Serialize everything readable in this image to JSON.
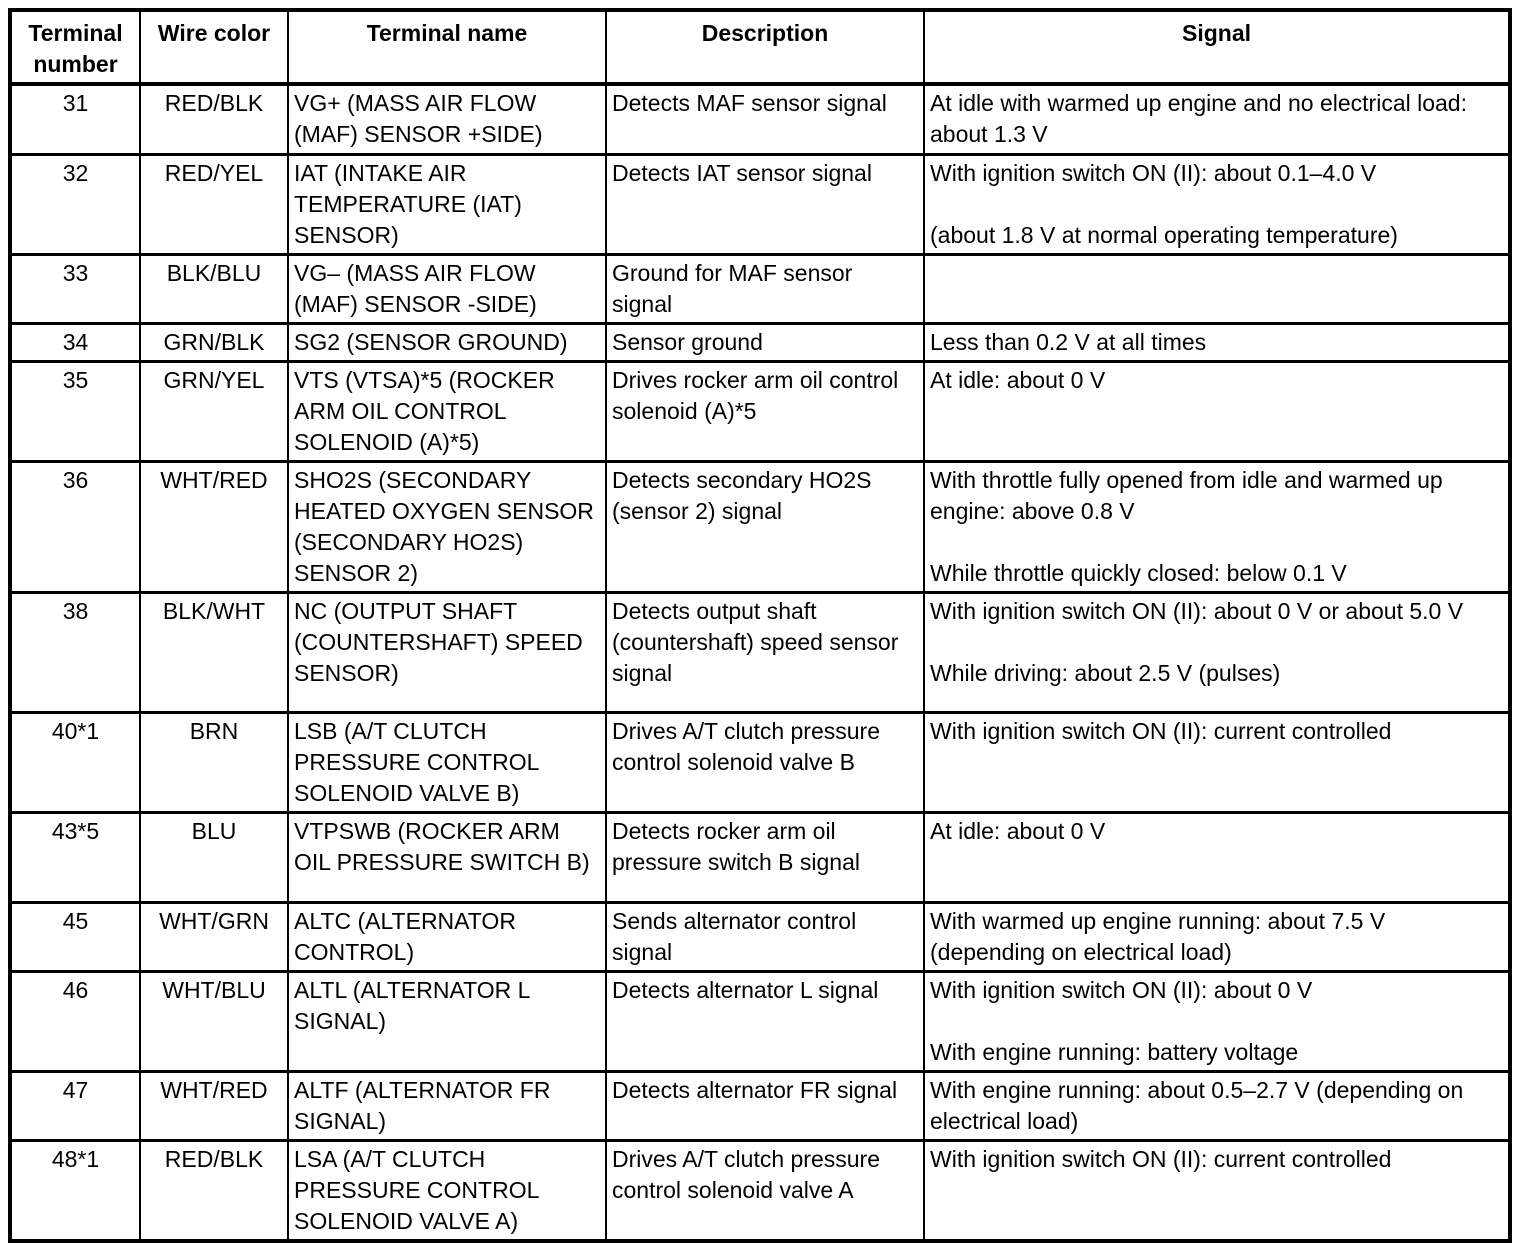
{
  "table": {
    "headers": [
      "Terminal number",
      "Wire color",
      "Terminal name",
      "Description",
      "Signal"
    ],
    "rows": [
      {
        "terminal": "31",
        "wire_color": "RED/BLK",
        "terminal_name": "VG+ (MASS AIR FLOW (MAF) SENSOR +SIDE)",
        "description": "Detects MAF sensor signal",
        "signal": [
          "At idle with warmed up engine and no electrical load: about 1.3 V"
        ]
      },
      {
        "terminal": "32",
        "wire_color": "RED/YEL",
        "terminal_name": "IAT (INTAKE AIR TEMPERATURE (IAT) SENSOR)",
        "description": "Detects IAT sensor signal",
        "signal": [
          "With ignition switch ON (II): about 0.1–4.0 V",
          "(about 1.8 V at normal operating temperature)"
        ]
      },
      {
        "terminal": "33",
        "wire_color": "BLK/BLU",
        "terminal_name": "VG– (MASS AIR FLOW (MAF) SENSOR -SIDE)",
        "description": "Ground for MAF sensor signal",
        "signal": []
      },
      {
        "terminal": "34",
        "wire_color": "GRN/BLK",
        "terminal_name": "SG2 (SENSOR GROUND)",
        "description": "Sensor ground",
        "signal": [
          "Less than 0.2 V at all times"
        ]
      },
      {
        "terminal": "35",
        "wire_color": "GRN/YEL",
        "terminal_name": "VTS (VTSA)*5 (ROCKER ARM OIL CONTROL SOLENOID (A)*5)",
        "description": "Drives rocker arm oil control solenoid (A)*5",
        "signal": [
          "At idle: about 0 V"
        ]
      },
      {
        "terminal": "36",
        "wire_color": "WHT/RED",
        "terminal_name": "SHO2S (SECONDARY HEATED OXYGEN SENSOR (SECONDARY HO2S) SENSOR 2)",
        "description": "Detects secondary HO2S (sensor 2) signal",
        "signal": [
          "With throttle fully opened from idle and warmed up engine: above 0.8 V",
          "While throttle quickly closed: below 0.1 V"
        ]
      },
      {
        "terminal": "38",
        "wire_color": "BLK/WHT",
        "terminal_name": "NC (OUTPUT SHAFT (COUNTERSHAFT) SPEED SENSOR)",
        "description": "Detects output shaft (countershaft) speed sensor signal",
        "signal": [
          "With ignition switch ON (II): about 0 V or about 5.0 V",
          "While driving: about 2.5 V (pulses)"
        ]
      },
      {
        "terminal": "40*1",
        "wire_color": "BRN",
        "terminal_name": "LSB (A/T CLUTCH PRESSURE CONTROL SOLENOID VALVE B)",
        "description": "Drives A/T clutch pressure control solenoid valve B",
        "signal": [
          "With ignition switch ON (II): current controlled"
        ]
      },
      {
        "terminal": "43*5",
        "wire_color": "BLU",
        "terminal_name": "VTPSWB (ROCKER ARM OIL PRESSURE SWITCH B)",
        "description": "Detects rocker arm oil pressure switch B signal",
        "signal": [
          "At idle: about 0 V"
        ]
      },
      {
        "terminal": "45",
        "wire_color": "WHT/GRN",
        "terminal_name": "ALTC (ALTERNATOR CONTROL)",
        "description": "Sends alternator control signal",
        "signal": [
          "With warmed up engine running: about 7.5 V (depending on electrical load)"
        ]
      },
      {
        "terminal": "46",
        "wire_color": "WHT/BLU",
        "terminal_name": "ALTL (ALTERNATOR L SIGNAL)",
        "description": "Detects alternator L signal",
        "signal": [
          "With ignition switch ON (II): about 0 V",
          "With engine running: battery voltage"
        ]
      },
      {
        "terminal": "47",
        "wire_color": "WHT/RED",
        "terminal_name": "ALTF (ALTERNATOR FR SIGNAL)",
        "description": "Detects alternator FR signal",
        "signal": [
          "With engine running: about 0.5–2.7 V (depending on electrical load)"
        ]
      },
      {
        "terminal": "48*1",
        "wire_color": "RED/BLK",
        "terminal_name": "LSA (A/T CLUTCH PRESSURE CONTROL SOLENOID VALVE A)",
        "description": "Drives A/T clutch pressure control solenoid valve A",
        "signal": [
          "With ignition switch ON (II): current controlled"
        ]
      }
    ]
  }
}
